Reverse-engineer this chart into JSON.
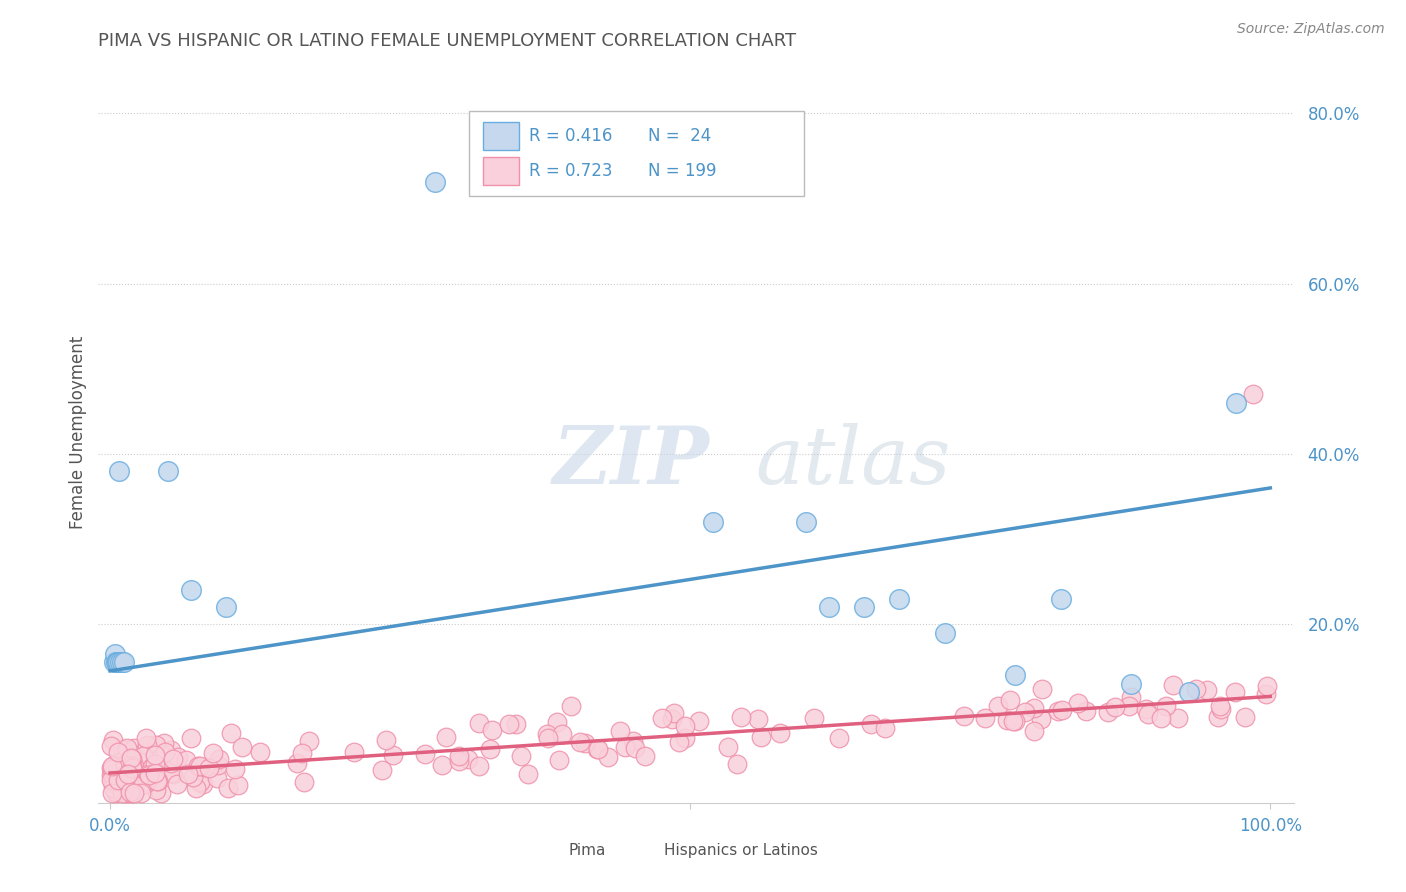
{
  "title": "PIMA VS HISPANIC OR LATINO FEMALE UNEMPLOYMENT CORRELATION CHART",
  "source_text": "Source: ZipAtlas.com",
  "ylabel": "Female Unemployment",
  "xlim": [
    -0.01,
    1.02
  ],
  "ylim": [
    -0.01,
    0.86
  ],
  "yticks": [
    0.0,
    0.2,
    0.4,
    0.6,
    0.8
  ],
  "ytick_labels": [
    "",
    "20.0%",
    "40.0%",
    "60.0%",
    "80.0%"
  ],
  "xtick_positions": [
    0.0,
    0.5,
    1.0
  ],
  "xtick_labels": [
    "0.0%",
    "",
    "100.0%"
  ],
  "legend_r1": "R = 0.416",
  "legend_n1": "N =  24",
  "legend_r2": "R = 0.723",
  "legend_n2": "N = 199",
  "watermark_zip": "ZIP",
  "watermark_atlas": "atlas",
  "blue_color": "#c5d8ee",
  "blue_edge_color": "#6aaee0",
  "blue_line_color": "#4d94c8",
  "pink_color": "#f9d0db",
  "pink_edge_color": "#f090aa",
  "pink_line_color": "#e06080",
  "legend_text_color": "#4d94c8",
  "title_color": "#555555",
  "source_color": "#888888",
  "background_color": "#ffffff",
  "grid_color": "#cccccc",
  "blue_slope": 0.215,
  "blue_intercept": 0.145,
  "pink_slope": 0.09,
  "pink_intercept": 0.025,
  "pima_x": [
    0.003,
    0.004,
    0.005,
    0.006,
    0.007,
    0.008,
    0.009,
    0.01,
    0.012,
    0.05,
    0.07,
    0.1,
    0.28,
    0.52,
    0.6,
    0.62,
    0.65,
    0.68,
    0.72,
    0.78,
    0.82,
    0.88,
    0.93,
    0.97
  ],
  "pima_y": [
    0.155,
    0.165,
    0.155,
    0.155,
    0.155,
    0.38,
    0.155,
    0.155,
    0.155,
    0.38,
    0.24,
    0.22,
    0.72,
    0.32,
    0.32,
    0.22,
    0.22,
    0.23,
    0.19,
    0.14,
    0.23,
    0.13,
    0.12,
    0.46
  ]
}
